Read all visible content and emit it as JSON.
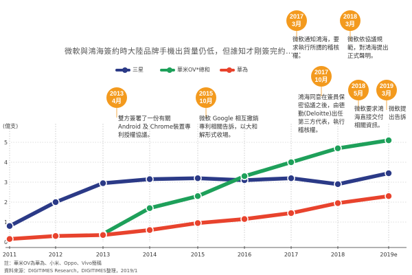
{
  "chart_data": {
    "type": "line",
    "title": "微軟與鴻海簽約時大陸品牌手機出貨量仍低，但誰知才剛簽完約……",
    "ylabel": "(億支)",
    "x": [
      "2011",
      "2012",
      "2013",
      "2014",
      "2015",
      "2016",
      "2017",
      "2018",
      "2019e"
    ],
    "y_ticks": [
      "0",
      "1",
      "2",
      "3",
      "4",
      "5"
    ],
    "ylim": [
      0,
      5.5
    ],
    "series": [
      {
        "name": "三星",
        "color": "#2b3a87",
        "values": [
          0.8,
          2.0,
          2.95,
          3.15,
          3.2,
          3.1,
          3.2,
          2.9,
          3.45
        ]
      },
      {
        "name": "華米OV*總和",
        "color": "#1ea05a",
        "values": [
          null,
          null,
          0.4,
          1.7,
          2.3,
          3.3,
          4.0,
          4.7,
          5.1
        ]
      },
      {
        "name": "華為",
        "color": "#e8432d",
        "values": [
          0.15,
          0.3,
          0.35,
          0.6,
          0.95,
          1.15,
          1.45,
          1.95,
          2.3
        ]
      }
    ],
    "annotations": [
      {
        "date": "2013\n4月",
        "text": "雙方簽署了一份有關Android 及 Chrome裝置專利授權協議。"
      },
      {
        "date": "2015\n10月",
        "text": "微軟 Google 相互撤銷專利相關告訴，以大和解形式收場。"
      },
      {
        "date": "2017\n10月",
        "text": "鴻海同意在簽員保密協議之後，由德勤(Deloitte)出任第三方代表，執行稽核權。"
      },
      {
        "date": "2017\n3月",
        "text": "微軟通知鴻海，要求執行所謂的稽核權。"
      },
      {
        "date": "2018\n3月",
        "text": "微軟依協議規範，對鴻海提出正式聲明。"
      },
      {
        "date": "2018\n5月",
        "text": "微軟要求鴻海直接交付相關資訊。"
      },
      {
        "date": "2019\n3月",
        "text": "微軟提出告訴"
      }
    ]
  },
  "footnote": {
    "line1": "註：華米OV為華為、小米、Oppo、Vivo簡稱",
    "line2": "資料來源：DIGITIMES Research，DIGITIMES整理，2019/1"
  }
}
